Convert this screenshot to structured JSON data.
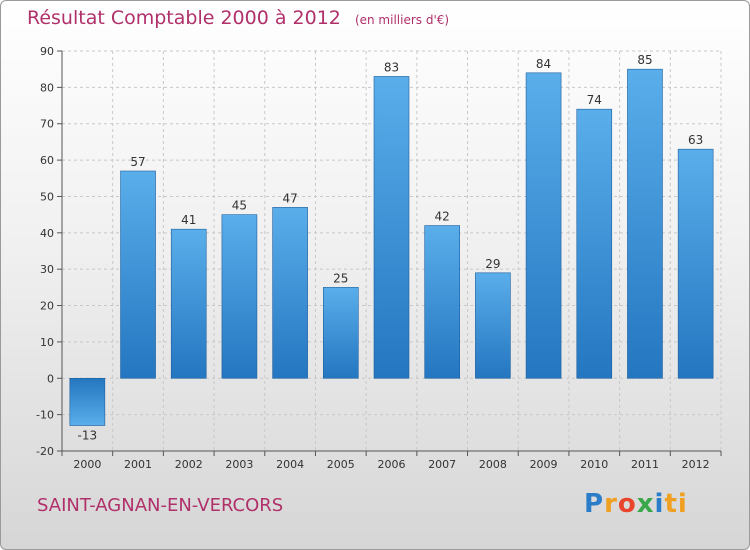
{
  "title": "Résultat Comptable 2000 à 2012",
  "subtitle": "(en milliers d'€)",
  "city": "SAINT-AGNAN-EN-VERCORS",
  "logo": [
    "P",
    "r",
    "o",
    "x",
    "i",
    "ti"
  ],
  "chart_data": {
    "type": "bar",
    "title": "Résultat Comptable 2000 à 2012",
    "subtitle": "(en milliers d'€)",
    "categories": [
      "2000",
      "2001",
      "2002",
      "2003",
      "2004",
      "2005",
      "2006",
      "2007",
      "2008",
      "2009",
      "2010",
      "2011",
      "2012"
    ],
    "values": [
      -13,
      57,
      41,
      45,
      47,
      25,
      83,
      42,
      29,
      84,
      74,
      85,
      63
    ],
    "ylim": [
      -20,
      90
    ],
    "yticks": [
      -20,
      -10,
      0,
      10,
      20,
      30,
      40,
      50,
      60,
      70,
      80,
      90
    ],
    "grid": true,
    "bar_color": "#3a8fd6"
  }
}
